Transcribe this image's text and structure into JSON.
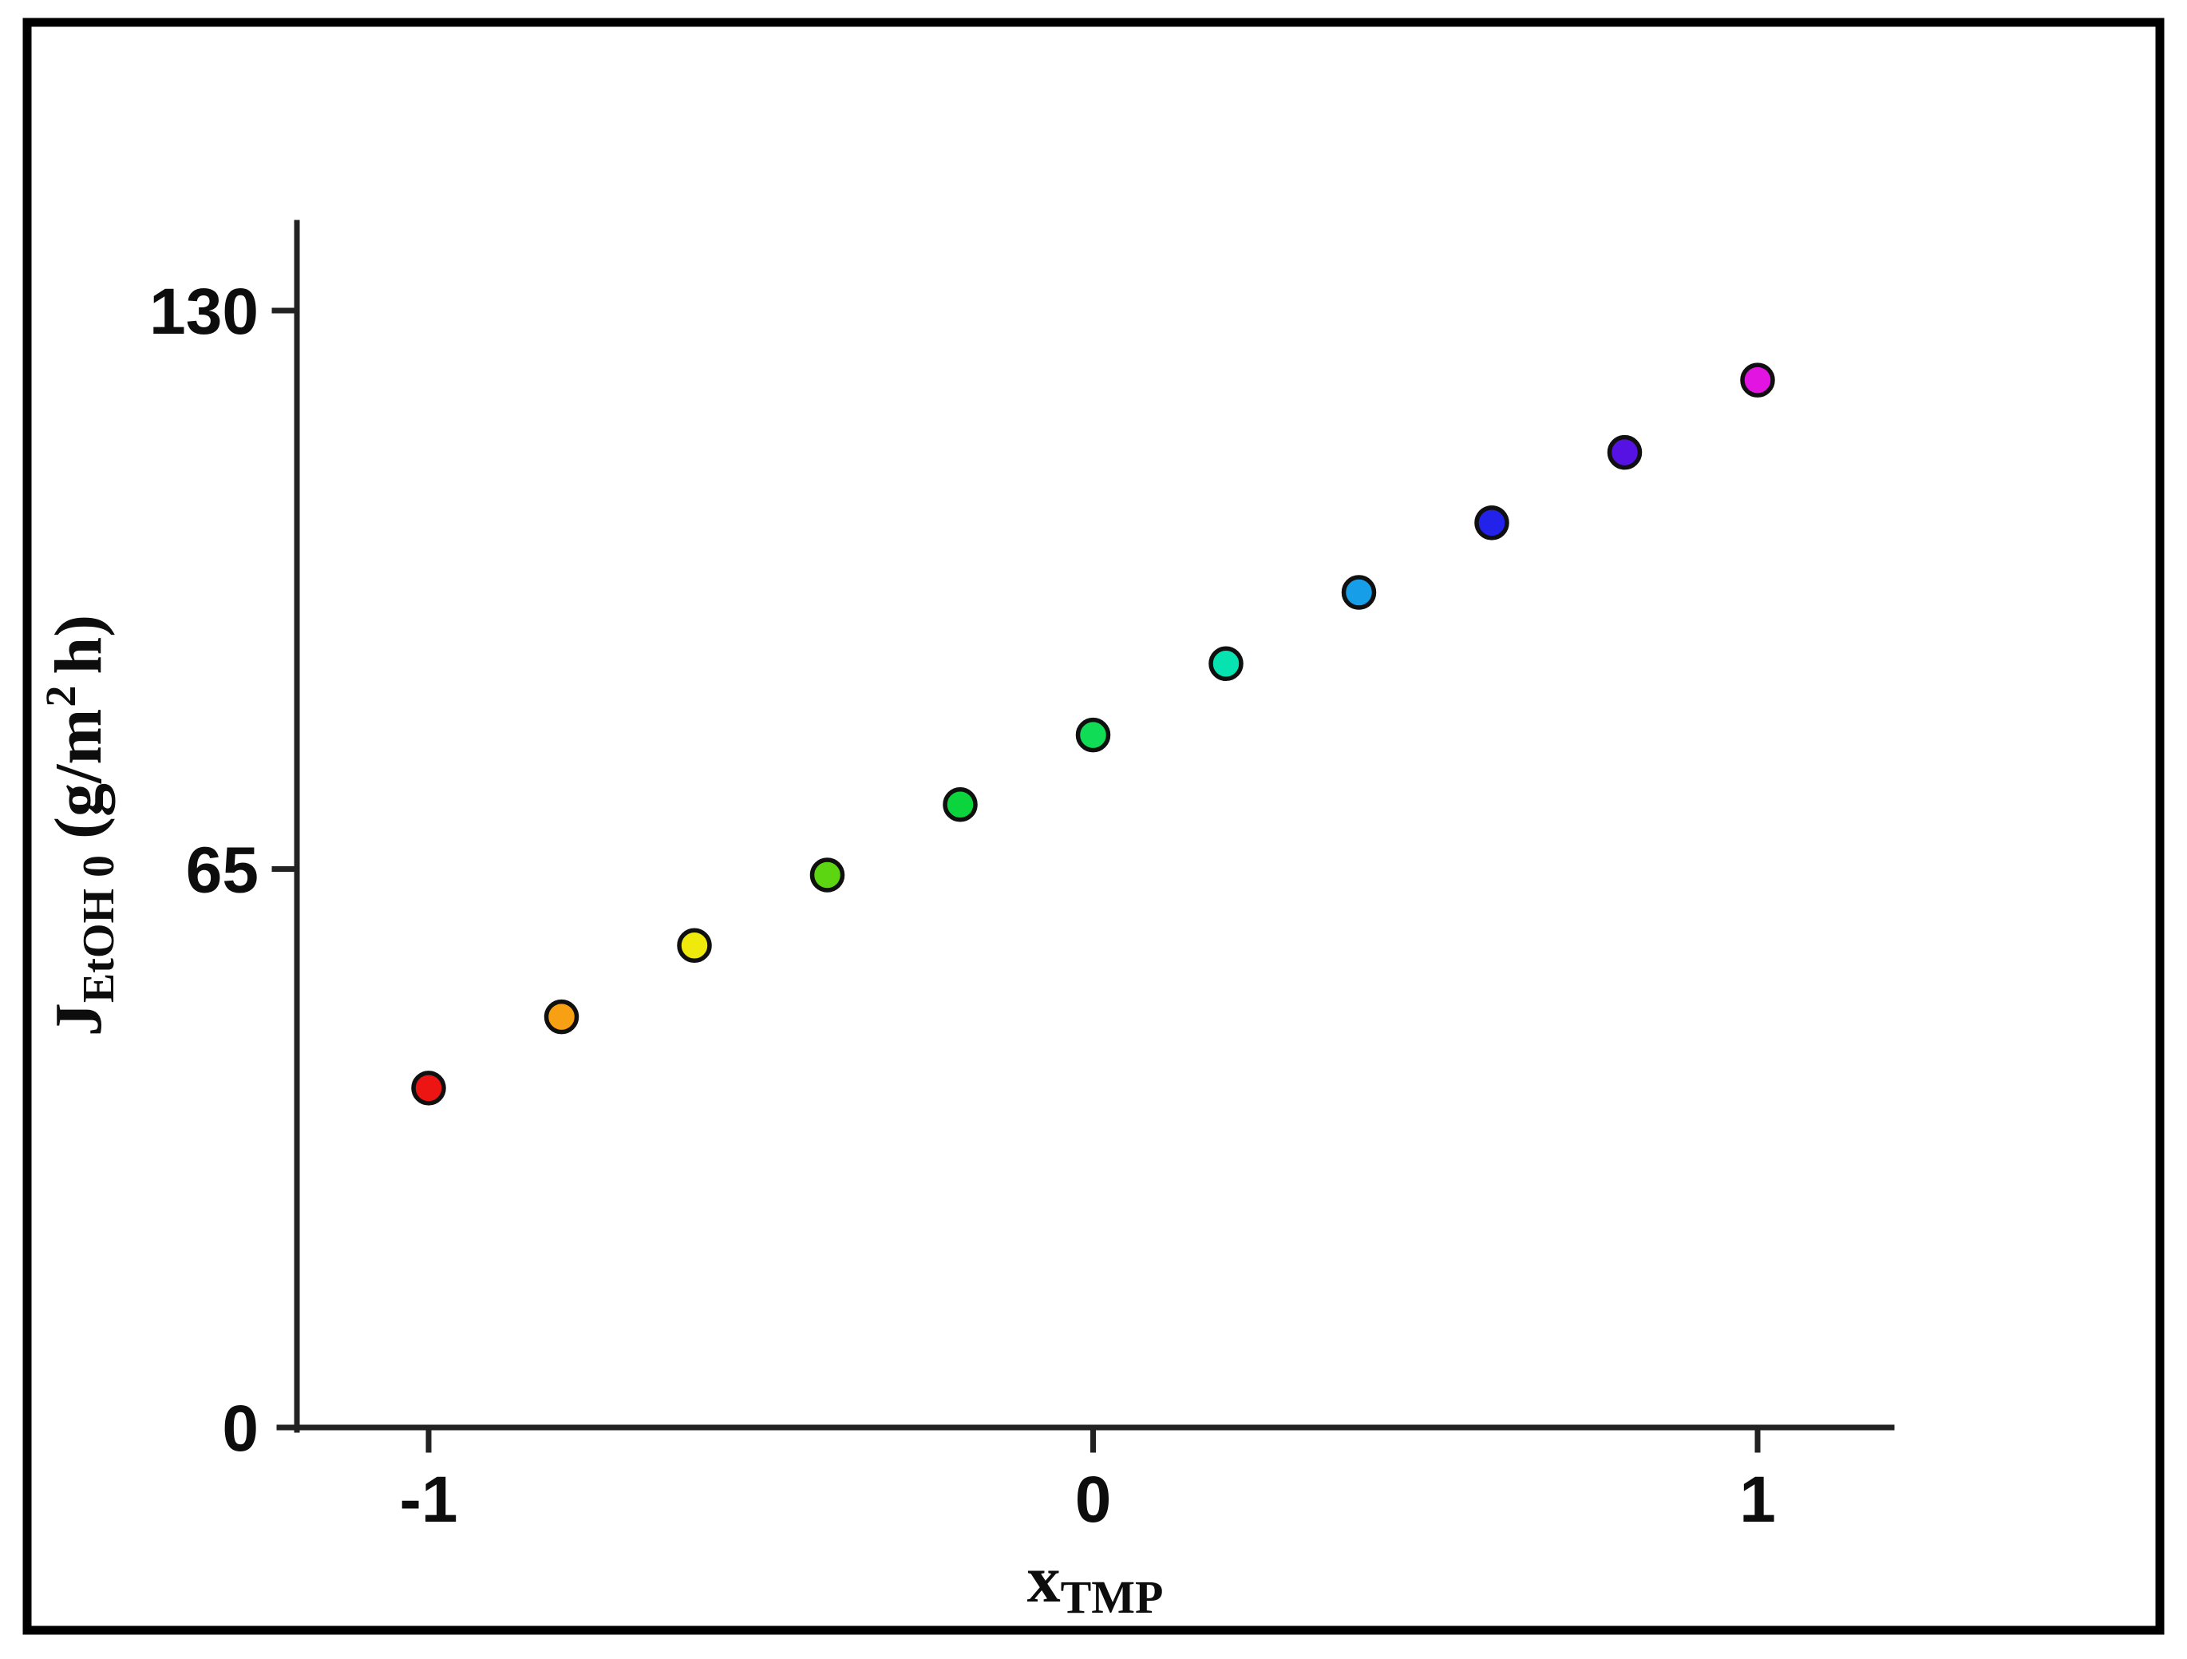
{
  "figure": {
    "background_color": "#ffffff",
    "frame_color": "#000000",
    "axis_color": "#222222",
    "text_color": "#0d0d0d",
    "marker_outline_color": "#101010"
  },
  "chart_data": {
    "type": "scatter",
    "title": "",
    "xlabel": {
      "base": "x",
      "subscript": "TMP"
    },
    "ylabel": {
      "base": "J",
      "subscript": "EtOH 0",
      "unit_prefix": "(g/m",
      "unit_exponent": "2",
      "unit_suffix": "h)"
    },
    "x_ticks": [
      "-1",
      "0",
      "1"
    ],
    "x_tick_values": [
      -1,
      0,
      1
    ],
    "y_ticks": [
      "0",
      "65",
      "130"
    ],
    "y_tick_values": [
      0,
      65,
      130
    ],
    "xlim": [
      -1.22,
      1.21
    ],
    "ylim": [
      0,
      140
    ],
    "grid": false,
    "legend": "none",
    "marker": {
      "shape": "circle",
      "radius_px": 19
    },
    "series": [
      {
        "name": "ethanol-flux-vs-xTMP",
        "points": [
          {
            "x": -1.0,
            "y": 39.5,
            "color": "#ed1414"
          },
          {
            "x": -0.8,
            "y": 47.8,
            "color": "#f7a014"
          },
          {
            "x": -0.6,
            "y": 56.1,
            "color": "#f0e90c"
          },
          {
            "x": -0.4,
            "y": 64.3,
            "color": "#5cd611"
          },
          {
            "x": -0.2,
            "y": 72.5,
            "color": "#0cd43c"
          },
          {
            "x": 0.0,
            "y": 80.6,
            "color": "#10dd55"
          },
          {
            "x": 0.2,
            "y": 88.9,
            "color": "#07e3b0"
          },
          {
            "x": 0.4,
            "y": 97.2,
            "color": "#179ee8"
          },
          {
            "x": 0.6,
            "y": 105.3,
            "color": "#2222ea"
          },
          {
            "x": 0.8,
            "y": 113.5,
            "color": "#5512e2"
          },
          {
            "x": 1.0,
            "y": 121.9,
            "color": "#e214e2"
          }
        ]
      }
    ]
  }
}
